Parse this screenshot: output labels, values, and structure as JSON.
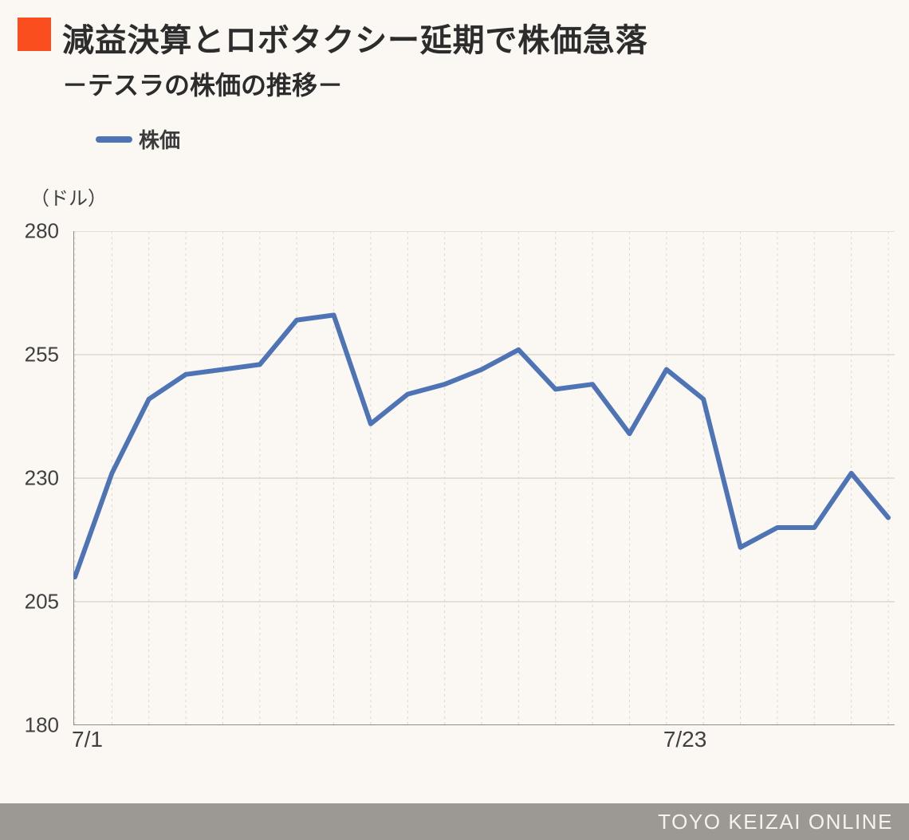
{
  "header": {
    "accent_color": "#fa4e1f",
    "title": "減益決算とロボタクシー延期で株価急落",
    "subtitle": "－テスラの株価の推移－",
    "title_color": "#2c2c2c",
    "title_fontsize": 40,
    "subtitle_fontsize": 32
  },
  "legend": {
    "swatch_color": "#4e74b6",
    "label": "株価",
    "label_fontsize": 26
  },
  "chart": {
    "type": "line",
    "y_unit_label": "（ドル）",
    "background_color": "#fbf8f3",
    "grid_color": "#dcd8d0",
    "axis_line_color": "#8c8c8c",
    "line_color": "#4e74b6",
    "line_width": 6,
    "ylim": [
      180,
      280
    ],
    "ytick_step": 25,
    "y_ticks": [
      180,
      205,
      230,
      255,
      280
    ],
    "x_tick_labels": [
      {
        "index": 0,
        "label": "7/1"
      },
      {
        "index": 16,
        "label": "7/23"
      }
    ],
    "n_points": 22,
    "values": [
      210,
      231,
      246,
      251,
      252,
      253,
      262,
      263,
      241,
      247,
      249,
      252,
      256,
      248,
      249,
      239,
      252,
      246,
      216,
      220,
      220,
      231
    ],
    "extra_values": [
      222
    ],
    "label_fontsize": 26,
    "label_color": "#404040"
  },
  "footer": {
    "text": "TOYO KEIZAI ONLINE",
    "background_color": "#9c9893",
    "text_color": "#f6f3ed"
  }
}
